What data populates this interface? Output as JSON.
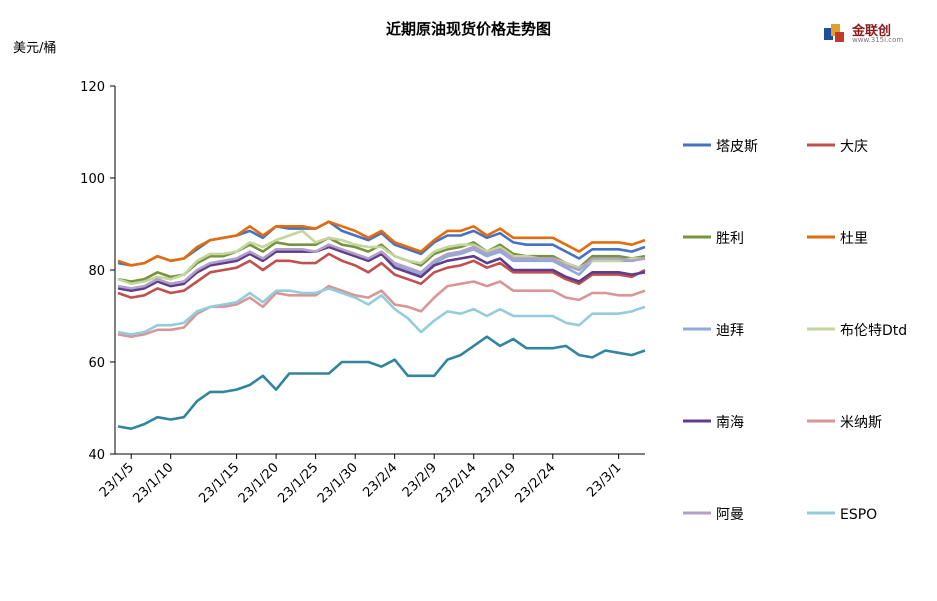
{
  "title": "近期原油现货价格走势图",
  "unit": "美元/桶",
  "logo": {
    "name": "金联创",
    "sub": "www.315i.com"
  },
  "chart_data": {
    "type": "line",
    "title": "近期原油现货价格走势图",
    "ylabel": "美元/桶",
    "ylim": [
      40,
      120
    ],
    "yticks": [
      40,
      60,
      80,
      100,
      120
    ],
    "x_tick_labels": [
      "23/1/5",
      "23/1/10",
      "23/1/15",
      "23/1/20",
      "23/1/25",
      "23/1/30",
      "23/2/4",
      "23/2/9",
      "23/2/14",
      "23/2/19",
      "23/2/24",
      "23/3/1"
    ],
    "x": [
      "2023-01-04",
      "2023-01-05",
      "2023-01-06",
      "2023-01-09",
      "2023-01-10",
      "2023-01-11",
      "2023-01-12",
      "2023-01-13",
      "2023-01-16",
      "2023-01-17",
      "2023-01-18",
      "2023-01-19",
      "2023-01-20",
      "2023-01-24",
      "2023-01-25",
      "2023-01-26",
      "2023-01-27",
      "2023-01-30",
      "2023-01-31",
      "2023-02-01",
      "2023-02-02",
      "2023-02-03",
      "2023-02-06",
      "2023-02-07",
      "2023-02-08",
      "2023-02-09",
      "2023-02-10",
      "2023-02-13",
      "2023-02-14",
      "2023-02-15",
      "2023-02-16",
      "2023-02-17",
      "2023-02-20",
      "2023-02-21",
      "2023-02-22",
      "2023-02-23",
      "2023-02-24",
      "2023-02-27",
      "2023-02-28",
      "2023-03-01",
      "2023-03-02"
    ],
    "grid": false,
    "legend_position": "right",
    "series": [
      {
        "name": "塔皮斯",
        "color": "#4472c4",
        "values": [
          81.5,
          81.0,
          81.5,
          83.0,
          82.0,
          82.5,
          84.5,
          86.5,
          87.0,
          87.5,
          88.5,
          87.0,
          89.5,
          89.0,
          89.0,
          89.0,
          90.5,
          88.5,
          87.5,
          86.5,
          88.0,
          85.5,
          84.5,
          83.5,
          86.0,
          87.5,
          87.5,
          88.5,
          87.0,
          88.0,
          86.0,
          85.5,
          85.5,
          85.5,
          84.0,
          82.5,
          84.5,
          84.5,
          84.5,
          84.0,
          85.0
        ]
      },
      {
        "name": "大庆",
        "color": "#c0504d",
        "values": [
          75.0,
          74.0,
          74.5,
          76.0,
          75.0,
          75.5,
          77.5,
          79.5,
          80.0,
          80.5,
          82.0,
          80.0,
          82.0,
          82.0,
          81.5,
          81.5,
          83.5,
          82.0,
          81.0,
          79.5,
          81.5,
          79.0,
          78.0,
          77.0,
          79.5,
          80.5,
          81.0,
          82.0,
          80.5,
          81.5,
          79.5,
          79.5,
          79.5,
          79.5,
          78.0,
          77.0,
          79.0,
          79.0,
          79.0,
          78.5,
          80.0
        ]
      },
      {
        "name": "胜利",
        "color": "#77933c",
        "values": [
          78.0,
          77.5,
          78.0,
          79.5,
          78.5,
          79.0,
          81.5,
          83.0,
          83.0,
          84.0,
          85.5,
          84.0,
          86.0,
          85.5,
          85.5,
          85.5,
          87.0,
          85.5,
          85.0,
          84.0,
          85.5,
          83.0,
          82.0,
          81.0,
          83.5,
          84.5,
          85.0,
          86.0,
          84.0,
          85.5,
          83.5,
          83.0,
          83.0,
          83.0,
          81.5,
          80.5,
          83.0,
          83.0,
          83.0,
          82.5,
          83.0
        ]
      },
      {
        "name": "杜里",
        "color": "#e46c0a",
        "values": [
          82.0,
          81.0,
          81.5,
          83.0,
          82.0,
          82.5,
          85.0,
          86.5,
          87.0,
          87.5,
          89.5,
          87.5,
          89.5,
          89.5,
          89.5,
          89.0,
          90.5,
          89.5,
          88.5,
          87.0,
          88.5,
          86.0,
          85.0,
          84.0,
          86.5,
          88.5,
          88.5,
          89.5,
          87.5,
          89.0,
          87.0,
          87.0,
          87.0,
          87.0,
          85.5,
          84.0,
          86.0,
          86.0,
          86.0,
          85.5,
          86.5
        ]
      },
      {
        "name": "迪拜",
        "color": "#8eaadb",
        "values": [
          76.5,
          75.5,
          76.0,
          77.5,
          77.0,
          77.5,
          79.5,
          81.0,
          81.5,
          82.0,
          83.5,
          82.0,
          84.0,
          84.0,
          84.0,
          84.0,
          85.5,
          84.0,
          83.0,
          82.0,
          83.5,
          81.0,
          80.0,
          79.0,
          81.5,
          83.0,
          83.5,
          84.5,
          83.0,
          84.0,
          82.0,
          82.0,
          82.0,
          82.0,
          80.5,
          79.0,
          82.0,
          82.0,
          82.0,
          82.0,
          82.5
        ]
      },
      {
        "name": "布伦特Dtd",
        "color": "#c3d69b",
        "values": [
          78.0,
          77.0,
          77.5,
          78.5,
          78.0,
          79.0,
          82.0,
          83.5,
          83.5,
          84.0,
          86.0,
          85.0,
          86.5,
          87.5,
          88.5,
          86.0,
          87.0,
          86.5,
          85.5,
          85.0,
          85.0,
          83.0,
          82.0,
          81.5,
          84.0,
          85.0,
          85.5,
          85.5,
          84.0,
          85.0,
          83.0,
          83.0,
          82.5,
          82.5,
          81.5,
          80.5,
          82.0,
          82.0,
          82.0,
          82.5,
          82.5
        ]
      },
      {
        "name": "南海",
        "color": "#5f3c8c",
        "values": [
          76.0,
          75.5,
          76.0,
          77.5,
          76.5,
          77.0,
          79.5,
          81.0,
          81.5,
          82.0,
          83.5,
          82.0,
          84.0,
          84.0,
          84.0,
          84.0,
          85.0,
          84.0,
          83.0,
          82.0,
          83.5,
          80.5,
          79.5,
          78.5,
          81.0,
          82.0,
          82.5,
          83.0,
          81.5,
          82.5,
          80.0,
          80.0,
          80.0,
          80.0,
          78.5,
          77.5,
          79.5,
          79.5,
          79.5,
          79.0,
          79.5
        ]
      },
      {
        "name": "米纳斯",
        "color": "#d99694",
        "values": [
          66.0,
          65.5,
          66.0,
          67.0,
          67.0,
          67.5,
          70.5,
          72.0,
          72.0,
          72.5,
          74.0,
          72.0,
          75.0,
          74.5,
          74.5,
          74.5,
          76.5,
          75.5,
          74.5,
          74.0,
          75.5,
          72.5,
          72.0,
          71.0,
          74.0,
          76.5,
          77.0,
          77.5,
          76.5,
          77.5,
          75.5,
          75.5,
          75.5,
          75.5,
          74.0,
          73.5,
          75.0,
          75.0,
          74.5,
          74.5,
          75.5
        ]
      },
      {
        "name": "阿曼",
        "color": "#b1a0c7",
        "values": [
          76.5,
          76.0,
          76.5,
          78.0,
          77.0,
          77.5,
          80.0,
          81.5,
          82.0,
          82.5,
          84.0,
          82.5,
          84.5,
          84.5,
          84.5,
          84.0,
          85.5,
          84.5,
          83.5,
          82.5,
          84.0,
          81.5,
          80.5,
          79.5,
          82.0,
          83.5,
          84.0,
          85.0,
          83.5,
          84.5,
          82.5,
          82.5,
          82.5,
          82.5,
          81.0,
          80.0,
          82.5,
          82.5,
          82.5,
          82.0,
          82.5
        ]
      },
      {
        "name": "ESPO",
        "color": "#93cddd",
        "values": [
          66.5,
          66.0,
          66.5,
          68.0,
          68.0,
          68.5,
          71.0,
          72.0,
          72.5,
          73.0,
          75.0,
          73.0,
          75.5,
          75.5,
          75.0,
          75.0,
          76.0,
          75.0,
          74.0,
          72.5,
          74.5,
          71.5,
          69.5,
          66.5,
          69.0,
          71.0,
          70.5,
          71.5,
          70.0,
          71.5,
          70.0,
          70.0,
          70.0,
          70.0,
          68.5,
          68.0,
          70.5,
          70.5,
          70.5,
          71.0,
          72.0
        ]
      },
      {
        "name": "",
        "color": "#31859c",
        "values": [
          46.0,
          45.5,
          46.5,
          48.0,
          47.5,
          48.0,
          51.5,
          53.5,
          53.5,
          54.0,
          55.0,
          57.0,
          54.0,
          57.5,
          57.5,
          57.5,
          57.5,
          60.0,
          60.0,
          60.0,
          59.0,
          60.5,
          57.0,
          57.0,
          57.0,
          60.5,
          61.5,
          63.5,
          65.5,
          63.5,
          65.0,
          63.0,
          63.0,
          63.0,
          63.5,
          61.5,
          61.0,
          62.5,
          62.0,
          61.5,
          62.5
        ]
      }
    ]
  }
}
